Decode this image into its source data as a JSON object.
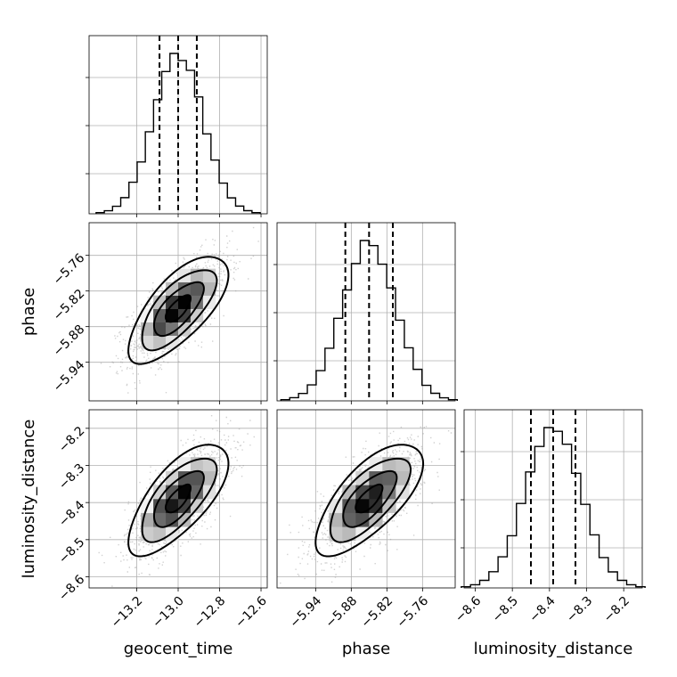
{
  "chart_data": {
    "type": "corner",
    "parameters": [
      {
        "key": "geocent_time",
        "label": "geocent_time",
        "median": -13.0,
        "quantiles": [
          -13.09,
          -13.0,
          -12.91
        ],
        "sigma": 0.12,
        "range": [
          -13.43,
          -12.57
        ],
        "ticks": [
          -13.2,
          -13.0,
          -12.8,
          -12.6
        ],
        "tick_labels": [
          "−13.2",
          "−13.0",
          "−12.8",
          "−12.6"
        ]
      },
      {
        "key": "phase",
        "label": "phase",
        "median": -5.85,
        "quantiles": [
          -5.89,
          -5.85,
          -5.81
        ],
        "sigma": 0.045,
        "range": [
          -6.005,
          -5.705
        ],
        "ticks": [
          -5.94,
          -5.88,
          -5.82,
          -5.76
        ],
        "tick_labels": [
          "−5.94",
          "−5.88",
          "−5.82",
          "−5.76"
        ]
      },
      {
        "key": "luminosity_distance",
        "label": "luminosity_distance",
        "median": -8.39,
        "quantiles": [
          -8.45,
          -8.39,
          -8.33
        ],
        "sigma": 0.075,
        "range": [
          -8.63,
          -8.15
        ],
        "ticks": [
          -8.6,
          -8.5,
          -8.4,
          -8.3,
          -8.2
        ],
        "tick_labels": [
          "−8.6",
          "−8.5",
          "−8.4",
          "−8.3",
          "−8.2"
        ]
      }
    ],
    "correlation": 0.7,
    "histogram_bins": 20,
    "contour_levels": 3,
    "grid": true,
    "quantile_lines": "dashed"
  }
}
